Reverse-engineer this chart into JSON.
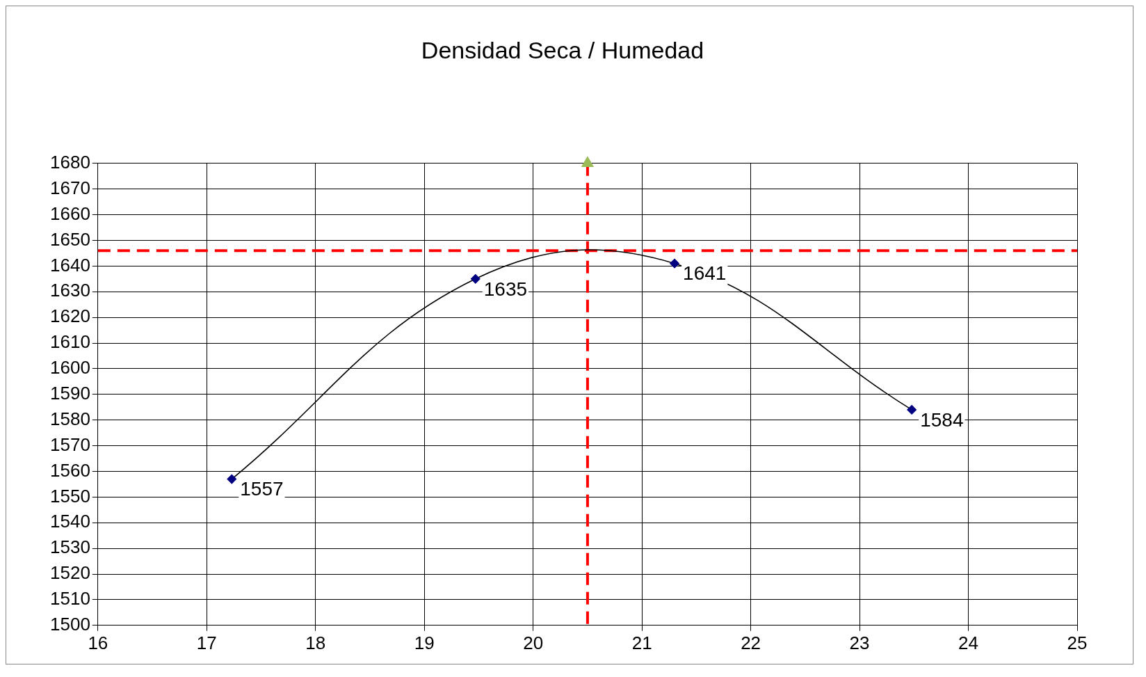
{
  "chart_data": {
    "type": "scatter",
    "title": "Densidad Seca / Humedad",
    "series": [
      {
        "type": "line",
        "x": [
          17.23,
          19.47,
          21.3,
          23.48
        ],
        "values": [
          1557,
          1635,
          1641,
          1584
        ],
        "color": "#000080",
        "marker": "diamond",
        "data_labels": true
      },
      {
        "type": "scatter",
        "x": [
          20.5
        ],
        "values": [
          1680
        ],
        "color": "#9bbb59",
        "marker": "triangle"
      }
    ],
    "xlim": [
      16,
      25
    ],
    "xticks": [
      16,
      17,
      18,
      19,
      20,
      21,
      22,
      23,
      24,
      25
    ],
    "ylim": [
      1500,
      1680
    ],
    "yticks": [
      1500,
      1510,
      1520,
      1530,
      1540,
      1550,
      1560,
      1570,
      1580,
      1590,
      1600,
      1610,
      1620,
      1630,
      1640,
      1650,
      1660,
      1670,
      1680
    ],
    "grid": true,
    "legend": false,
    "ref_lines": [
      {
        "axis": "y",
        "value": 1646,
        "color": "#ff0000",
        "line_style": "dashed"
      },
      {
        "axis": "x",
        "value": 20.5,
        "color": "#ff0000",
        "line_style": "dashed"
      }
    ]
  }
}
